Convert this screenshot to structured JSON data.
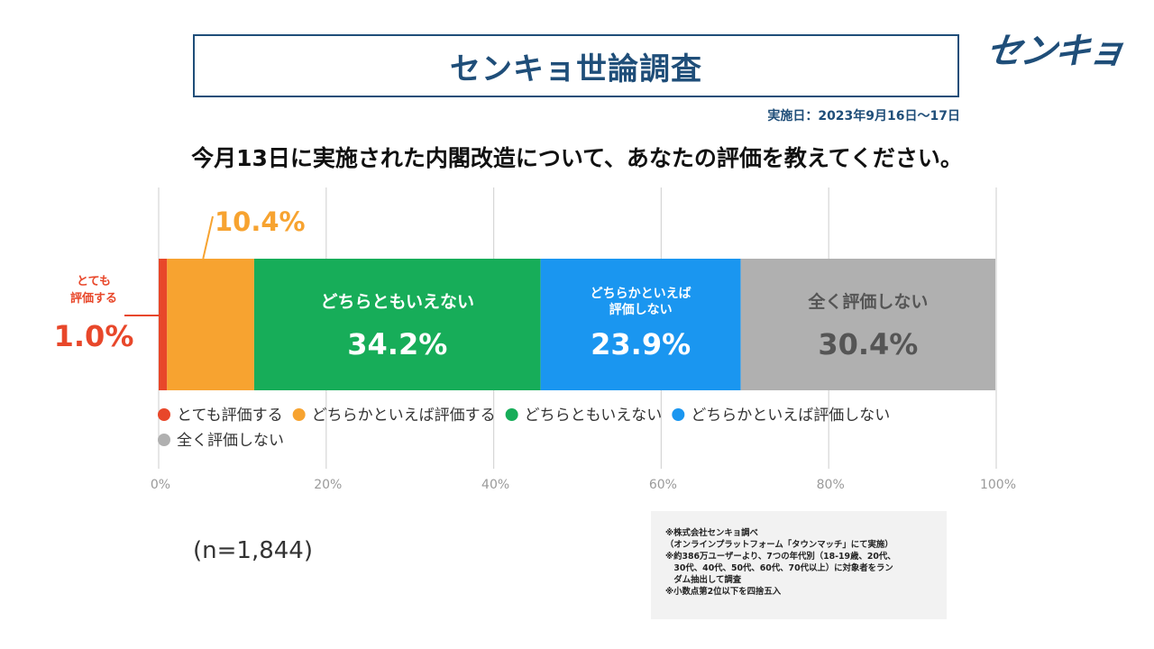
{
  "header": {
    "title": "センキョ世論調査",
    "logo_text": "センキョ",
    "date": "実施日：2023年9月16日～17日"
  },
  "question": "今月13日に実施された内閣改造について、あなたの評価を教えてください。",
  "sample_size": "(n=1,844)",
  "notes": [
    "※株式会社センキョ調べ",
    "（オンラインプラットフォーム「タウンマッチ」にて実施）",
    "※約386万ユーザーより、7つの年代別（18-19歳、20代、",
    "　30代、40代、50代、60代、70代以上）に対象者をラン",
    "　ダム抽出して調査",
    "※小数点第2位以下を四捨五入"
  ],
  "chart_data": {
    "type": "bar",
    "orientation": "horizontal-stacked",
    "xlim": [
      0,
      100
    ],
    "x_ticks": [
      "0%",
      "20%",
      "40%",
      "60%",
      "80%",
      "100%"
    ],
    "grid": true,
    "legend_position": "bottom-left",
    "series": [
      {
        "name": "とても評価する",
        "value": 1.0,
        "value_label": "1.0%",
        "bar_label": [
          "とても",
          "評価する"
        ],
        "color": "#e8472a"
      },
      {
        "name": "どちらかといえば評価する",
        "value": 10.4,
        "value_label": "10.4%",
        "bar_label": [],
        "color": "#f7a330"
      },
      {
        "name": "どちらともいえない",
        "value": 34.2,
        "value_label": "34.2%",
        "bar_label": [
          "どちらともいえない"
        ],
        "color": "#17ad59"
      },
      {
        "name": "どちらかといえば評価しない",
        "value": 23.9,
        "value_label": "23.9%",
        "bar_label": [
          "どちらかといえば",
          "評価しない"
        ],
        "color": "#1a96f0"
      },
      {
        "name": "全く評価しない",
        "value": 30.4,
        "value_label": "30.4%",
        "bar_label": [
          "全く評価しない"
        ],
        "color": "#b0b0b0"
      }
    ]
  }
}
